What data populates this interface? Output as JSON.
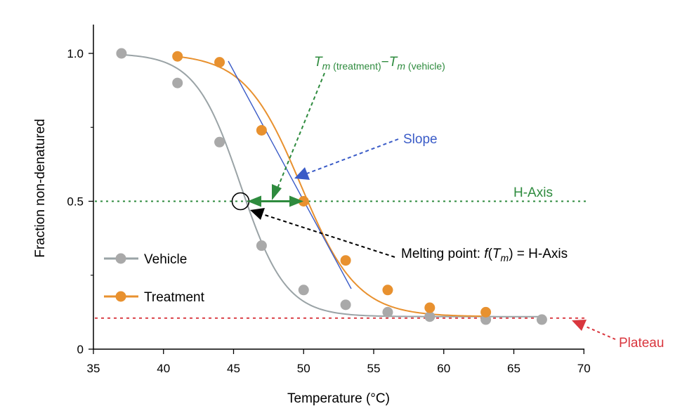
{
  "chart_data": {
    "type": "line",
    "xlabel": "Temperature (°C)",
    "ylabel": "Fraction non-denatured",
    "xlim": [
      35,
      70
    ],
    "ylim": [
      0,
      1.1
    ],
    "x_ticks": [
      "35",
      "40",
      "45",
      "50",
      "55",
      "60",
      "65",
      "70"
    ],
    "y_ticks": [
      "0",
      "0.5",
      "1.0"
    ],
    "legend_placement": "lower-left",
    "series": [
      {
        "name": "Vehicle",
        "color": "#a9a9a9",
        "line_color": "#9aa3a6",
        "x": [
          37,
          41,
          44,
          47,
          50,
          53,
          56,
          59,
          63,
          67
        ],
        "y": [
          1.0,
          0.9,
          0.7,
          0.35,
          0.2,
          0.15,
          0.125,
          0.11,
          0.1,
          0.1
        ],
        "fit": {
          "Tm": 45.5,
          "k": 0.62,
          "bottom": 0.11,
          "top": 1.0
        }
      },
      {
        "name": "Treatment",
        "color": "#e8912f",
        "line_color": "#e8912f",
        "x": [
          41,
          44,
          47,
          50,
          53,
          56,
          59,
          63
        ],
        "y": [
          0.99,
          0.97,
          0.74,
          0.5,
          0.3,
          0.2,
          0.14,
          0.125
        ],
        "fit": {
          "Tm": 49.8,
          "k": 0.5,
          "bottom": 0.11,
          "top": 1.0
        }
      }
    ],
    "annotations": {
      "tm_diff": {
        "t1": "T",
        "s1": "m",
        "g1": " (treatment)",
        "minus": "−",
        "t2": "T",
        "s2": "m",
        "g2": " (vehicle)",
        "color": "#2e8b3e"
      },
      "slope": {
        "label": "Slope",
        "color": "#3a5bc7"
      },
      "h_axis": {
        "label": "H-Axis",
        "y": 0.5,
        "color": "#2e8b3e"
      },
      "melting_point": {
        "prefix": "Melting point: ",
        "f": "f",
        "open": "(",
        "t": "T",
        "sub": "m",
        "close": ")",
        "eq": " = ",
        "rhs": "H-Axis",
        "x": 45.5,
        "y": 0.5
      },
      "plateau": {
        "label": "Plateau",
        "y": 0.105,
        "color": "#d9363e"
      }
    }
  }
}
